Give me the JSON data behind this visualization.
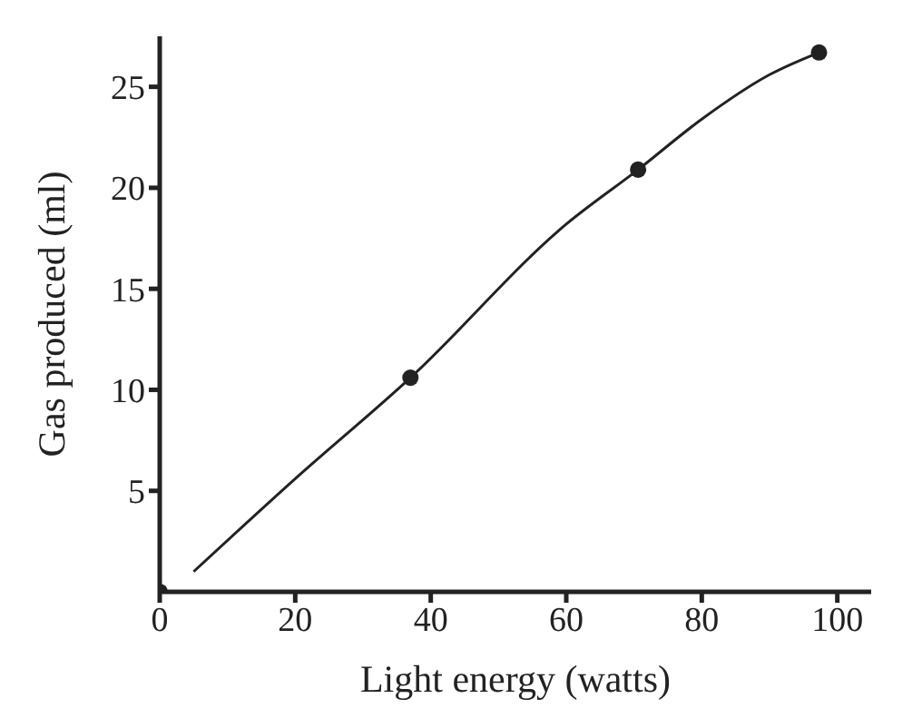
{
  "chart_data": {
    "type": "scatter",
    "xlabel": "Light energy (watts)",
    "ylabel": "Gas produced (ml)",
    "xlim": [
      0,
      105
    ],
    "ylim": [
      0,
      27.5
    ],
    "xticks": [
      0,
      20,
      40,
      60,
      80,
      100
    ],
    "yticks": [
      5,
      10,
      15,
      20,
      25
    ],
    "grid": false,
    "legend": false,
    "marker": "circle",
    "series": [
      {
        "color": "#222222",
        "x": [
          0,
          37,
          70.6,
          97.3
        ],
        "values": [
          0,
          10.6,
          20.9,
          26.7
        ]
      },
      {
        "type": "line",
        "color": "#222222",
        "marker": "none",
        "line_style": "solid",
        "x": [
          5,
          20,
          37,
          60,
          70.6,
          80,
          90,
          97.3
        ],
        "values": [
          1,
          5.6,
          10.6,
          18.2,
          20.9,
          23.4,
          25.6,
          26.7
        ]
      }
    ]
  }
}
